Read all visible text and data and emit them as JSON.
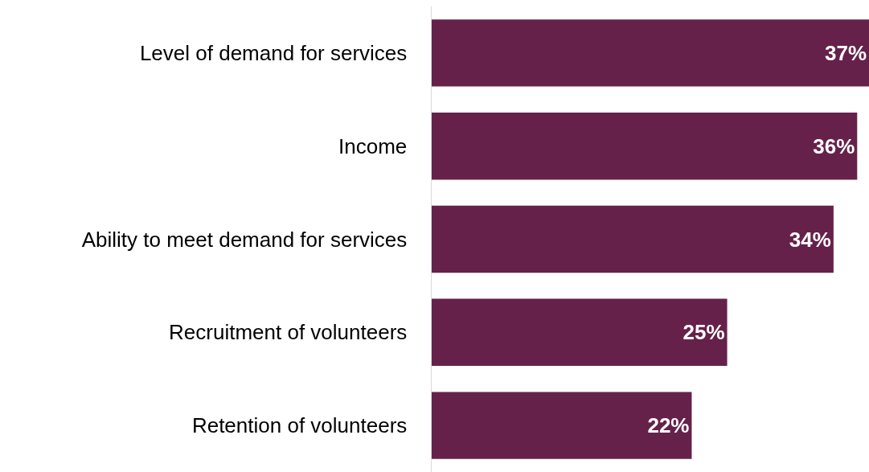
{
  "chart_data": {
    "type": "bar",
    "orientation": "horizontal",
    "categories": [
      "Level of demand for services",
      "Income",
      "Ability to meet demand for services",
      "Recruitment of volunteers",
      "Retention of volunteers"
    ],
    "values": [
      37,
      36,
      34,
      25,
      22
    ],
    "value_labels": [
      "37%",
      "36%",
      "34%",
      "25%",
      "22%"
    ],
    "color": "#66214a",
    "xlim": [
      0,
      37
    ],
    "tick_labels": "y"
  }
}
